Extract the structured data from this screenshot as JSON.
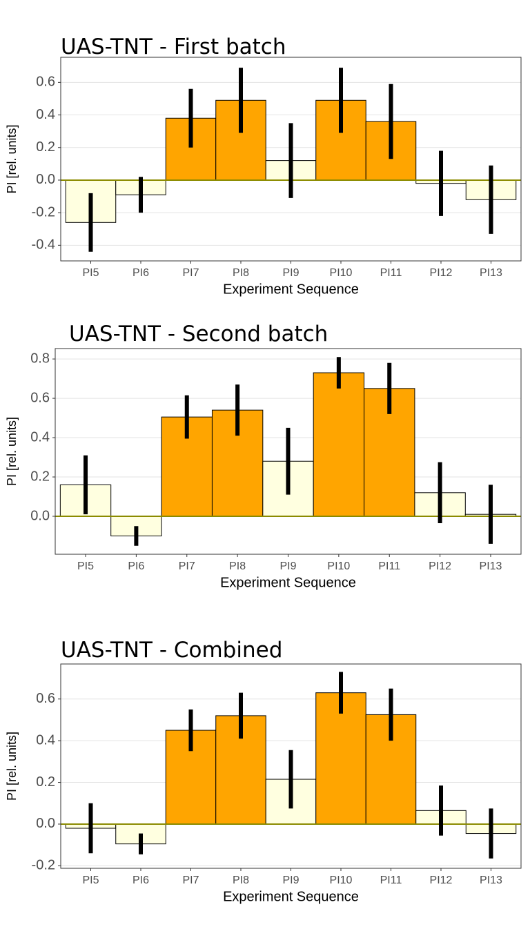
{
  "chart_data": [
    {
      "type": "bar",
      "title": "UAS-TNT - First batch",
      "xlabel": "Experiment Sequence",
      "ylabel": "PI [rel. units]",
      "categories": [
        "PI5",
        "PI6",
        "PI7",
        "PI8",
        "PI9",
        "PI10",
        "PI11",
        "PI12",
        "PI13"
      ],
      "values": [
        -0.26,
        -0.09,
        0.38,
        0.49,
        0.12,
        0.49,
        0.36,
        -0.02,
        -0.12
      ],
      "errors": [
        0.18,
        0.11,
        0.18,
        0.2,
        0.23,
        0.2,
        0.23,
        0.2,
        0.21
      ],
      "colors": [
        "#ffffe0",
        "#ffffe0",
        "#ffa500",
        "#ffa500",
        "#ffffe0",
        "#ffa500",
        "#ffa500",
        "#ffffe0",
        "#ffffe0"
      ],
      "ylim": [
        -0.496,
        0.754
      ],
      "yticks": [
        -0.4,
        -0.2,
        {
          "value": 0,
          "label": "0.0"
        },
        0.2,
        0.4,
        0.6
      ],
      "grid": true
    },
    {
      "type": "bar",
      "title": "UAS-TNT - Second batch",
      "xlabel": "Experiment Sequence",
      "ylabel": "PI [rel. units]",
      "categories": [
        "PI5",
        "PI6",
        "PI7",
        "PI8",
        "PI9",
        "PI10",
        "PI11",
        "PI12",
        "PI13"
      ],
      "values": [
        0.16,
        -0.1,
        0.505,
        0.54,
        0.28,
        0.73,
        0.65,
        0.12,
        0.01
      ],
      "errors": [
        0.15,
        0.05,
        0.11,
        0.13,
        0.17,
        0.08,
        0.13,
        0.155,
        0.15
      ],
      "colors": [
        "#ffffe0",
        "#ffffe0",
        "#ffa500",
        "#ffa500",
        "#ffffe0",
        "#ffa500",
        "#ffa500",
        "#ffffe0",
        "#ffffe0"
      ],
      "ylim": [
        -0.193,
        0.853
      ],
      "yticks": [
        {
          "value": 0,
          "label": "0.0"
        },
        0.2,
        0.4,
        0.6,
        0.8
      ],
      "grid": true
    },
    {
      "type": "bar",
      "title": "UAS-TNT - Combined",
      "xlabel": "Experiment Sequence",
      "ylabel": "PI [rel. units]",
      "categories": [
        "PI5",
        "PI6",
        "PI7",
        "PI8",
        "PI9",
        "PI10",
        "PI11",
        "PI12",
        "PI13"
      ],
      "values": [
        -0.02,
        -0.095,
        0.45,
        0.52,
        0.215,
        0.63,
        0.525,
        0.065,
        -0.045
      ],
      "errors": [
        0.12,
        0.05,
        0.1,
        0.11,
        0.14,
        0.1,
        0.125,
        0.12,
        0.12
      ],
      "colors": [
        "#ffffe0",
        "#ffffe0",
        "#ffa500",
        "#ffa500",
        "#ffffe0",
        "#ffa500",
        "#ffa500",
        "#ffffe0",
        "#ffffe0"
      ],
      "ylim": [
        -0.212,
        0.768
      ],
      "yticks": [
        -0.2,
        {
          "value": 0,
          "label": "0.0"
        },
        0.2,
        0.4,
        0.6
      ],
      "grid": true
    }
  ]
}
